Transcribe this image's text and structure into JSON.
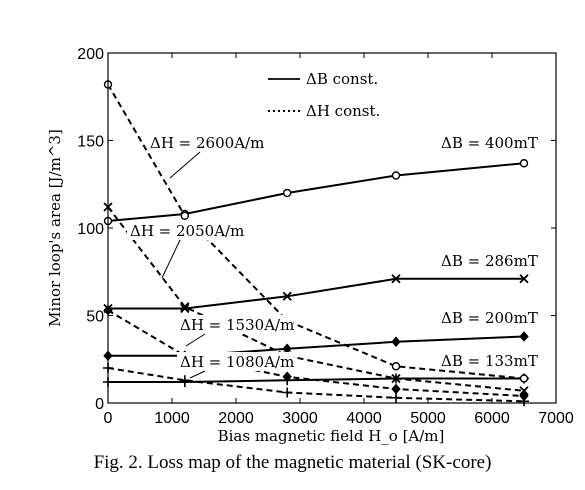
{
  "caption": "Fig. 2.    Loss map of the magnetic material (SK-core)",
  "chart_data": {
    "type": "line",
    "xlabel": "Bias magnetic field H_o [A/m]",
    "ylabel": "Minor loop's area [J/m^3]",
    "xlim": [
      0,
      7000
    ],
    "ylim": [
      0,
      200
    ],
    "xticks": [
      0,
      1000,
      2000,
      3000,
      4000,
      5000,
      6000,
      7000
    ],
    "yticks": [
      0,
      50,
      100,
      150,
      200
    ],
    "x": [
      0,
      1200,
      2800,
      4500,
      6500
    ],
    "grid": false,
    "legend": {
      "placement": "top-center",
      "entries": [
        {
          "label": "ΔB const.",
          "style": "solid"
        },
        {
          "label": "ΔH const.",
          "style": "dotted"
        }
      ]
    },
    "series": [
      {
        "name": "ΔB = 400mT",
        "style": "solid",
        "marker": "circle",
        "values": [
          104,
          108,
          120,
          130,
          137
        ]
      },
      {
        "name": "ΔB = 286mT",
        "style": "solid",
        "marker": "x",
        "values": [
          54,
          54,
          61,
          71,
          71
        ]
      },
      {
        "name": "ΔB = 200mT",
        "style": "solid",
        "marker": "diamond",
        "values": [
          27,
          27,
          31,
          35,
          38
        ]
      },
      {
        "name": "ΔB = 133mT",
        "style": "solid",
        "marker": "plus",
        "values": [
          12,
          12,
          13,
          14,
          14
        ]
      },
      {
        "name": "ΔH = 2600A/m",
        "style": "dashed",
        "marker": "circle",
        "values": [
          182,
          107,
          47,
          21,
          14
        ]
      },
      {
        "name": "ΔH = 2050A/m",
        "style": "dashed",
        "marker": "x",
        "values": [
          112,
          55,
          27,
          14,
          7
        ]
      },
      {
        "name": "ΔH = 1530A/m",
        "style": "dashed",
        "marker": "diamond",
        "values": [
          53,
          27,
          15,
          8,
          4
        ]
      },
      {
        "name": "ΔH = 1080A/m",
        "style": "dashed",
        "marker": "plus",
        "values": [
          20,
          13,
          6,
          3,
          1
        ]
      }
    ]
  }
}
